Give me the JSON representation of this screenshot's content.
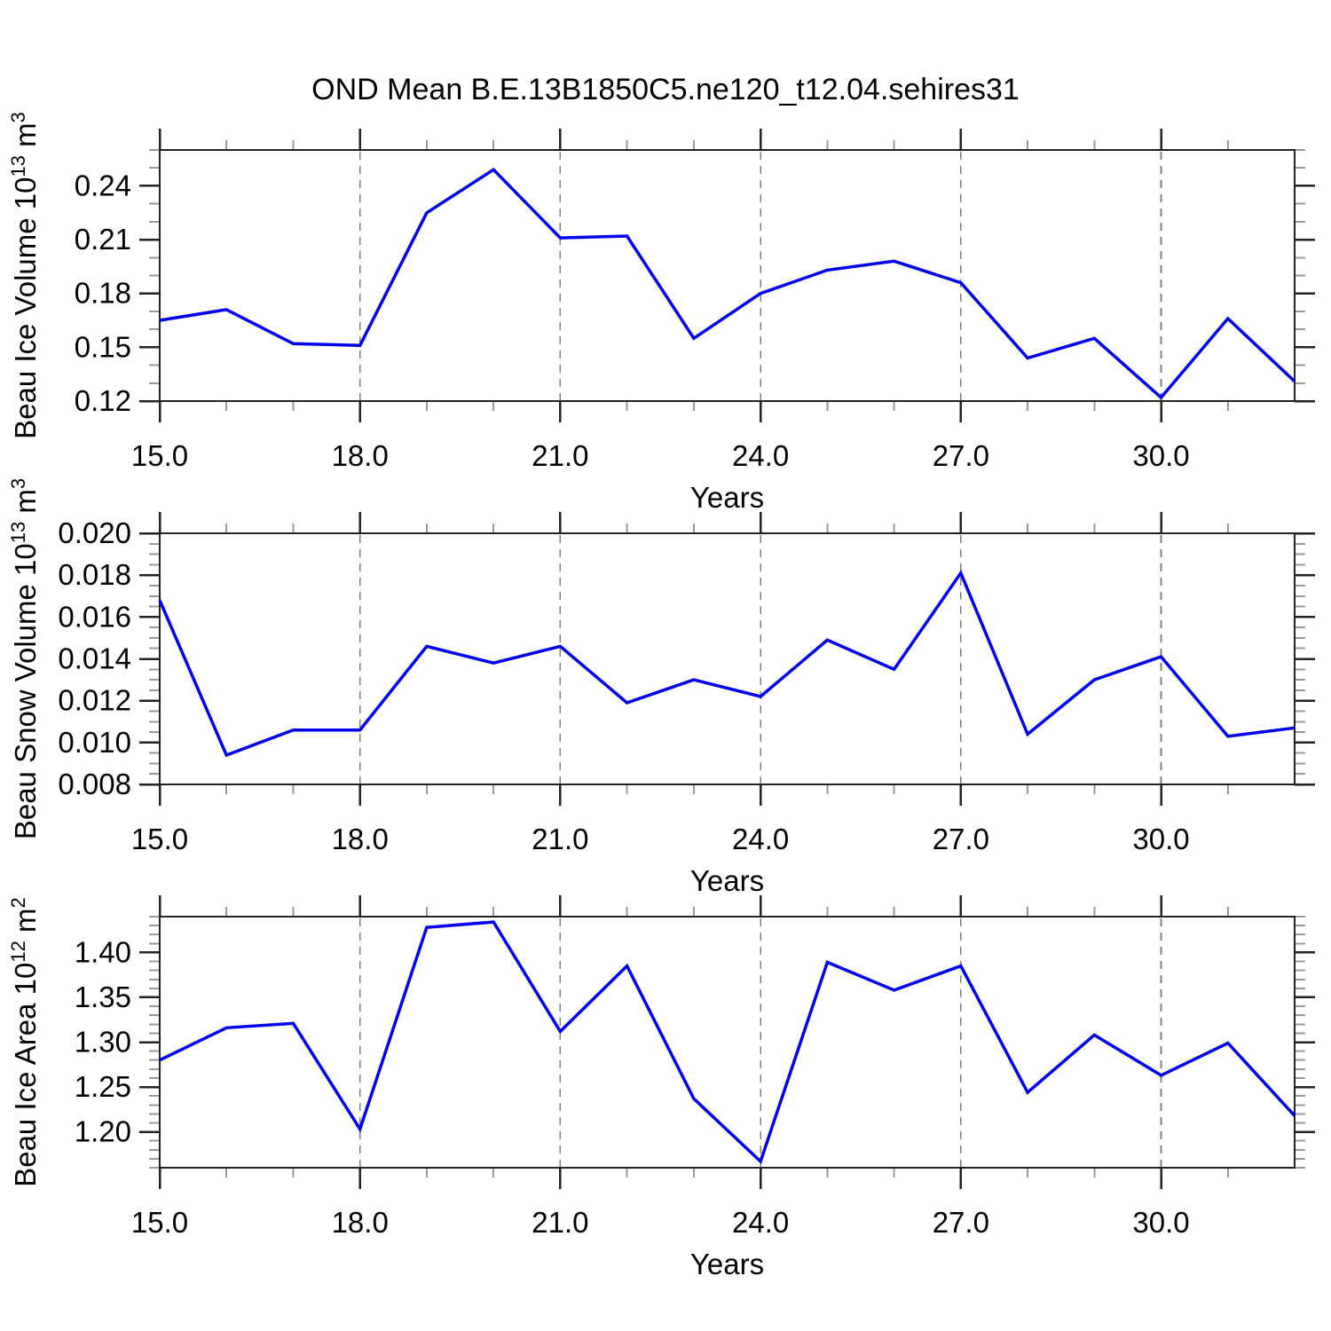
{
  "title": "OND Mean B.E.13B1850C5.ne120_t12.04.sehires31",
  "colors": {
    "line": "#0000ee",
    "frame": "#222222",
    "major_tick": "#222222",
    "minor_tick": "#999999",
    "grid": "#808080",
    "text": "#000000",
    "background": "#ffffff"
  },
  "x_axis": {
    "label": "Years",
    "xlim": [
      15,
      32
    ],
    "major_ticks": [
      15,
      18,
      21,
      24,
      27,
      30
    ],
    "major_tick_labels": [
      "15.0",
      "18.0",
      "21.0",
      "24.0",
      "27.0",
      "30.0"
    ],
    "minor_step": 1,
    "gridlines": [
      18,
      21,
      24,
      27,
      30
    ]
  },
  "chart_data": [
    {
      "type": "line",
      "ylabel": "Beau Ice Volume 10^13 m^3",
      "ylabel_parts": [
        {
          "t": "Beau Ice Volume 10"
        },
        {
          "t": "13",
          "sup": true
        },
        {
          "t": " m"
        },
        {
          "t": "3",
          "sup": true
        }
      ],
      "xlabel": "Years",
      "x": [
        15,
        16,
        17,
        18,
        19,
        20,
        21,
        22,
        23,
        24,
        25,
        26,
        27,
        28,
        29,
        30,
        31,
        32
      ],
      "values": [
        0.165,
        0.171,
        0.152,
        0.151,
        0.225,
        0.249,
        0.211,
        0.212,
        0.155,
        0.18,
        0.193,
        0.198,
        0.186,
        0.144,
        0.155,
        0.122,
        0.166,
        0.131
      ],
      "ylim": [
        0.12,
        0.26
      ],
      "yticks": [
        0.12,
        0.15,
        0.18,
        0.21,
        0.24
      ],
      "ytick_labels": [
        "0.12",
        "0.15",
        "0.18",
        "0.21",
        "0.24"
      ],
      "y_minor_step": 0.01,
      "grid": true,
      "legend": "none"
    },
    {
      "type": "line",
      "ylabel": "Beau Snow Volume 10^13 m^3",
      "ylabel_parts": [
        {
          "t": "Beau Snow Volume 10"
        },
        {
          "t": "13",
          "sup": true
        },
        {
          "t": " m"
        },
        {
          "t": "3",
          "sup": true
        }
      ],
      "xlabel": "Years",
      "x": [
        15,
        16,
        17,
        18,
        19,
        20,
        21,
        22,
        23,
        24,
        25,
        26,
        27,
        28,
        29,
        30,
        31,
        32
      ],
      "values": [
        0.0168,
        0.0094,
        0.0106,
        0.0106,
        0.0146,
        0.0138,
        0.0146,
        0.0119,
        0.013,
        0.0122,
        0.0149,
        0.0135,
        0.0181,
        0.0104,
        0.013,
        0.0141,
        0.0103,
        0.0107
      ],
      "ylim": [
        0.008,
        0.02
      ],
      "yticks": [
        0.008,
        0.01,
        0.012,
        0.014,
        0.016,
        0.018,
        0.02
      ],
      "ytick_labels": [
        "0.008",
        "0.010",
        "0.012",
        "0.014",
        "0.016",
        "0.018",
        "0.020"
      ],
      "y_minor_step": 0.0005,
      "grid": true,
      "legend": "none"
    },
    {
      "type": "line",
      "ylabel": "Beau Ice Area 10^12 m^2",
      "ylabel_parts": [
        {
          "t": "Beau Ice Area 10"
        },
        {
          "t": "12",
          "sup": true
        },
        {
          "t": " m"
        },
        {
          "t": "2",
          "sup": true
        }
      ],
      "xlabel": "Years",
      "x": [
        15,
        16,
        17,
        18,
        19,
        20,
        21,
        22,
        23,
        24,
        25,
        26,
        27,
        28,
        29,
        30,
        31,
        32
      ],
      "values": [
        1.28,
        1.316,
        1.321,
        1.203,
        1.428,
        1.434,
        1.312,
        1.385,
        1.237,
        1.167,
        1.389,
        1.358,
        1.385,
        1.244,
        1.308,
        1.263,
        1.299,
        1.218
      ],
      "ylim": [
        1.16,
        1.44
      ],
      "yticks": [
        1.2,
        1.25,
        1.3,
        1.35,
        1.4
      ],
      "ytick_labels": [
        "1.20",
        "1.25",
        "1.30",
        "1.35",
        "1.40"
      ],
      "y_minor_step": 0.01,
      "grid": true,
      "legend": "none"
    }
  ]
}
